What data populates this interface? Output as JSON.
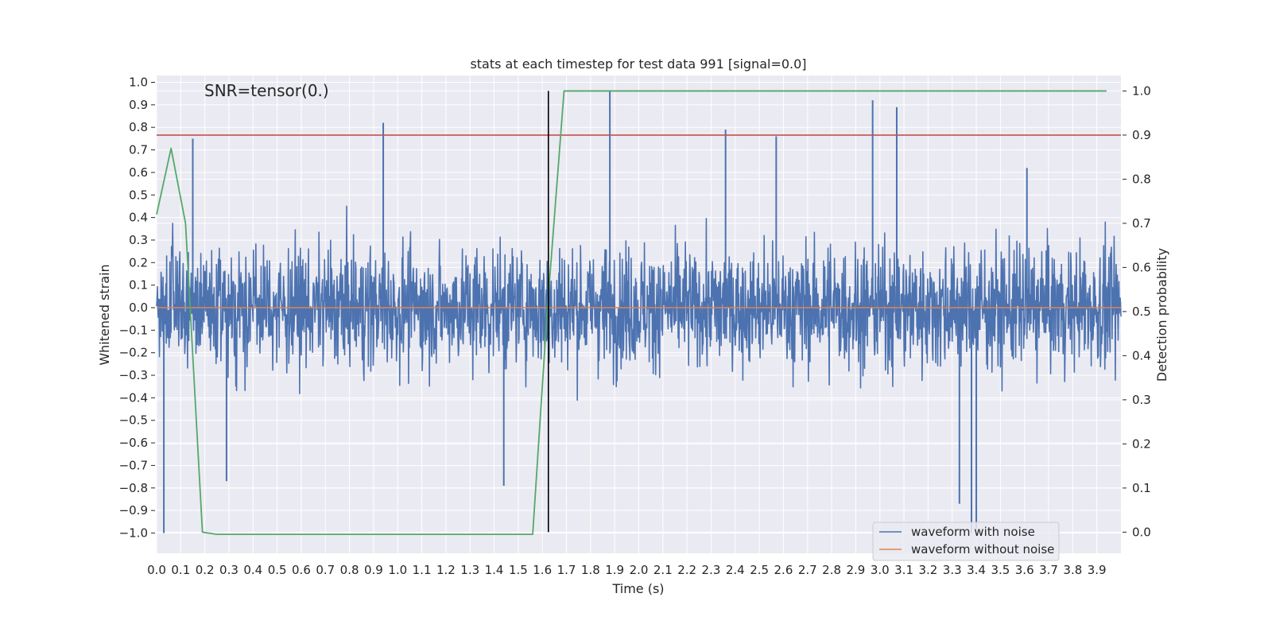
{
  "chart_data": {
    "type": "line",
    "title": "stats at each timestep for test data 991 [signal=0.0]",
    "annotation": "SNR=tensor(0.)",
    "xlabel": "Time (s)",
    "ylabel": "Whitened strain",
    "y2label": "Detection probability",
    "xlim": [
      0.0,
      4.0
    ],
    "ylim": [
      -1.09,
      1.03
    ],
    "y2lim": [
      -0.048,
      1.035
    ],
    "xticks": [
      0.0,
      0.1,
      0.2,
      0.3,
      0.4,
      0.5,
      0.6,
      0.7,
      0.8,
      0.9,
      1.0,
      1.1,
      1.2,
      1.3,
      1.4,
      1.5,
      1.6,
      1.7,
      1.8,
      1.9,
      2.0,
      2.1,
      2.2,
      2.3,
      2.4,
      2.5,
      2.6,
      2.7,
      2.8,
      2.9,
      3.0,
      3.1,
      3.2,
      3.3,
      3.4,
      3.5,
      3.6,
      3.7,
      3.8,
      3.9
    ],
    "xtick_labels": [
      "0.0",
      "0.1",
      "0.2",
      "0.3",
      "0.4",
      "0.5",
      "0.6",
      "0.7",
      "0.8",
      "0.9",
      "1.0",
      "1.1",
      "1.2",
      "1.3",
      "1.4",
      "1.5",
      "1.6",
      "1.7",
      "1.8",
      "1.9",
      "2.0",
      "2.1",
      "2.2",
      "2.3",
      "2.4",
      "2.5",
      "2.6",
      "2.7",
      "2.8",
      "2.9",
      "3.0",
      "3.1",
      "3.2",
      "3.3",
      "3.4",
      "3.5",
      "3.6",
      "3.7",
      "3.8",
      "3.9"
    ],
    "yticks": [
      1.0,
      0.9,
      0.8,
      0.7,
      0.6,
      0.5,
      0.4,
      0.3,
      0.2,
      0.1,
      0.0,
      -0.1,
      -0.2,
      -0.3,
      -0.4,
      -0.5,
      -0.6,
      -0.7,
      -0.8,
      -0.9,
      -1.0
    ],
    "ytick_labels": [
      "1.0",
      "0.9",
      "0.8",
      "0.7",
      "0.6",
      "0.5",
      "0.4",
      "0.3",
      "0.2",
      "0.1",
      "0.0",
      "−0.1",
      "−0.2",
      "−0.3",
      "−0.4",
      "−0.5",
      "−0.6",
      "−0.7",
      "−0.8",
      "−0.9",
      "−1.0"
    ],
    "y2ticks": [
      1.0,
      0.9,
      0.8,
      0.7,
      0.6,
      0.5,
      0.4,
      0.3,
      0.2,
      0.1,
      0.0
    ],
    "y2tick_labels": [
      "1.0",
      "0.9",
      "0.8",
      "0.7",
      "0.6",
      "0.5",
      "0.4",
      "0.3",
      "0.2",
      "0.1",
      "0.0"
    ],
    "noise_amplitude_typical": 0.3,
    "noise_spikes": [
      {
        "x": 0.03,
        "y": -1.0
      },
      {
        "x": 0.15,
        "y": 0.75
      },
      {
        "x": 0.29,
        "y": -0.77
      },
      {
        "x": 0.94,
        "y": 0.82
      },
      {
        "x": 1.44,
        "y": -0.79
      },
      {
        "x": 1.88,
        "y": 0.96
      },
      {
        "x": 2.97,
        "y": 0.92
      },
      {
        "x": 3.07,
        "y": 0.89
      },
      {
        "x": 3.33,
        "y": -0.87
      },
      {
        "x": 3.38,
        "y": -1.0
      },
      {
        "x": 3.4,
        "y": -0.98
      },
      {
        "x": 3.61,
        "y": 0.62
      },
      {
        "x": 2.36,
        "y": 0.79
      },
      {
        "x": 2.57,
        "y": 0.76
      }
    ],
    "series": [
      {
        "name": "waveform with noise",
        "color": "#4c72b0",
        "axis": "left",
        "kind": "noise"
      },
      {
        "name": "waveform without noise",
        "color": "#dd8452",
        "axis": "left",
        "x": [
          0.0,
          4.0
        ],
        "y": [
          0.0,
          0.0
        ]
      },
      {
        "name": "detection probability",
        "color": "#55a868",
        "axis": "right",
        "x": [
          0.0,
          0.06,
          0.12,
          0.19,
          0.25,
          1.56,
          1.62,
          1.69,
          3.94
        ],
        "y": [
          0.72,
          0.87,
          0.7,
          0.0,
          -0.005,
          -0.005,
          0.5,
          1.0,
          1.0
        ]
      }
    ],
    "threshold": {
      "axis": "right",
      "value": 0.9,
      "color": "#c44e52"
    },
    "vline": {
      "x": 1.625,
      "color": "#000000"
    },
    "legend": {
      "location": "lower-right",
      "entries": [
        "waveform with noise",
        "waveform without noise"
      ]
    }
  }
}
